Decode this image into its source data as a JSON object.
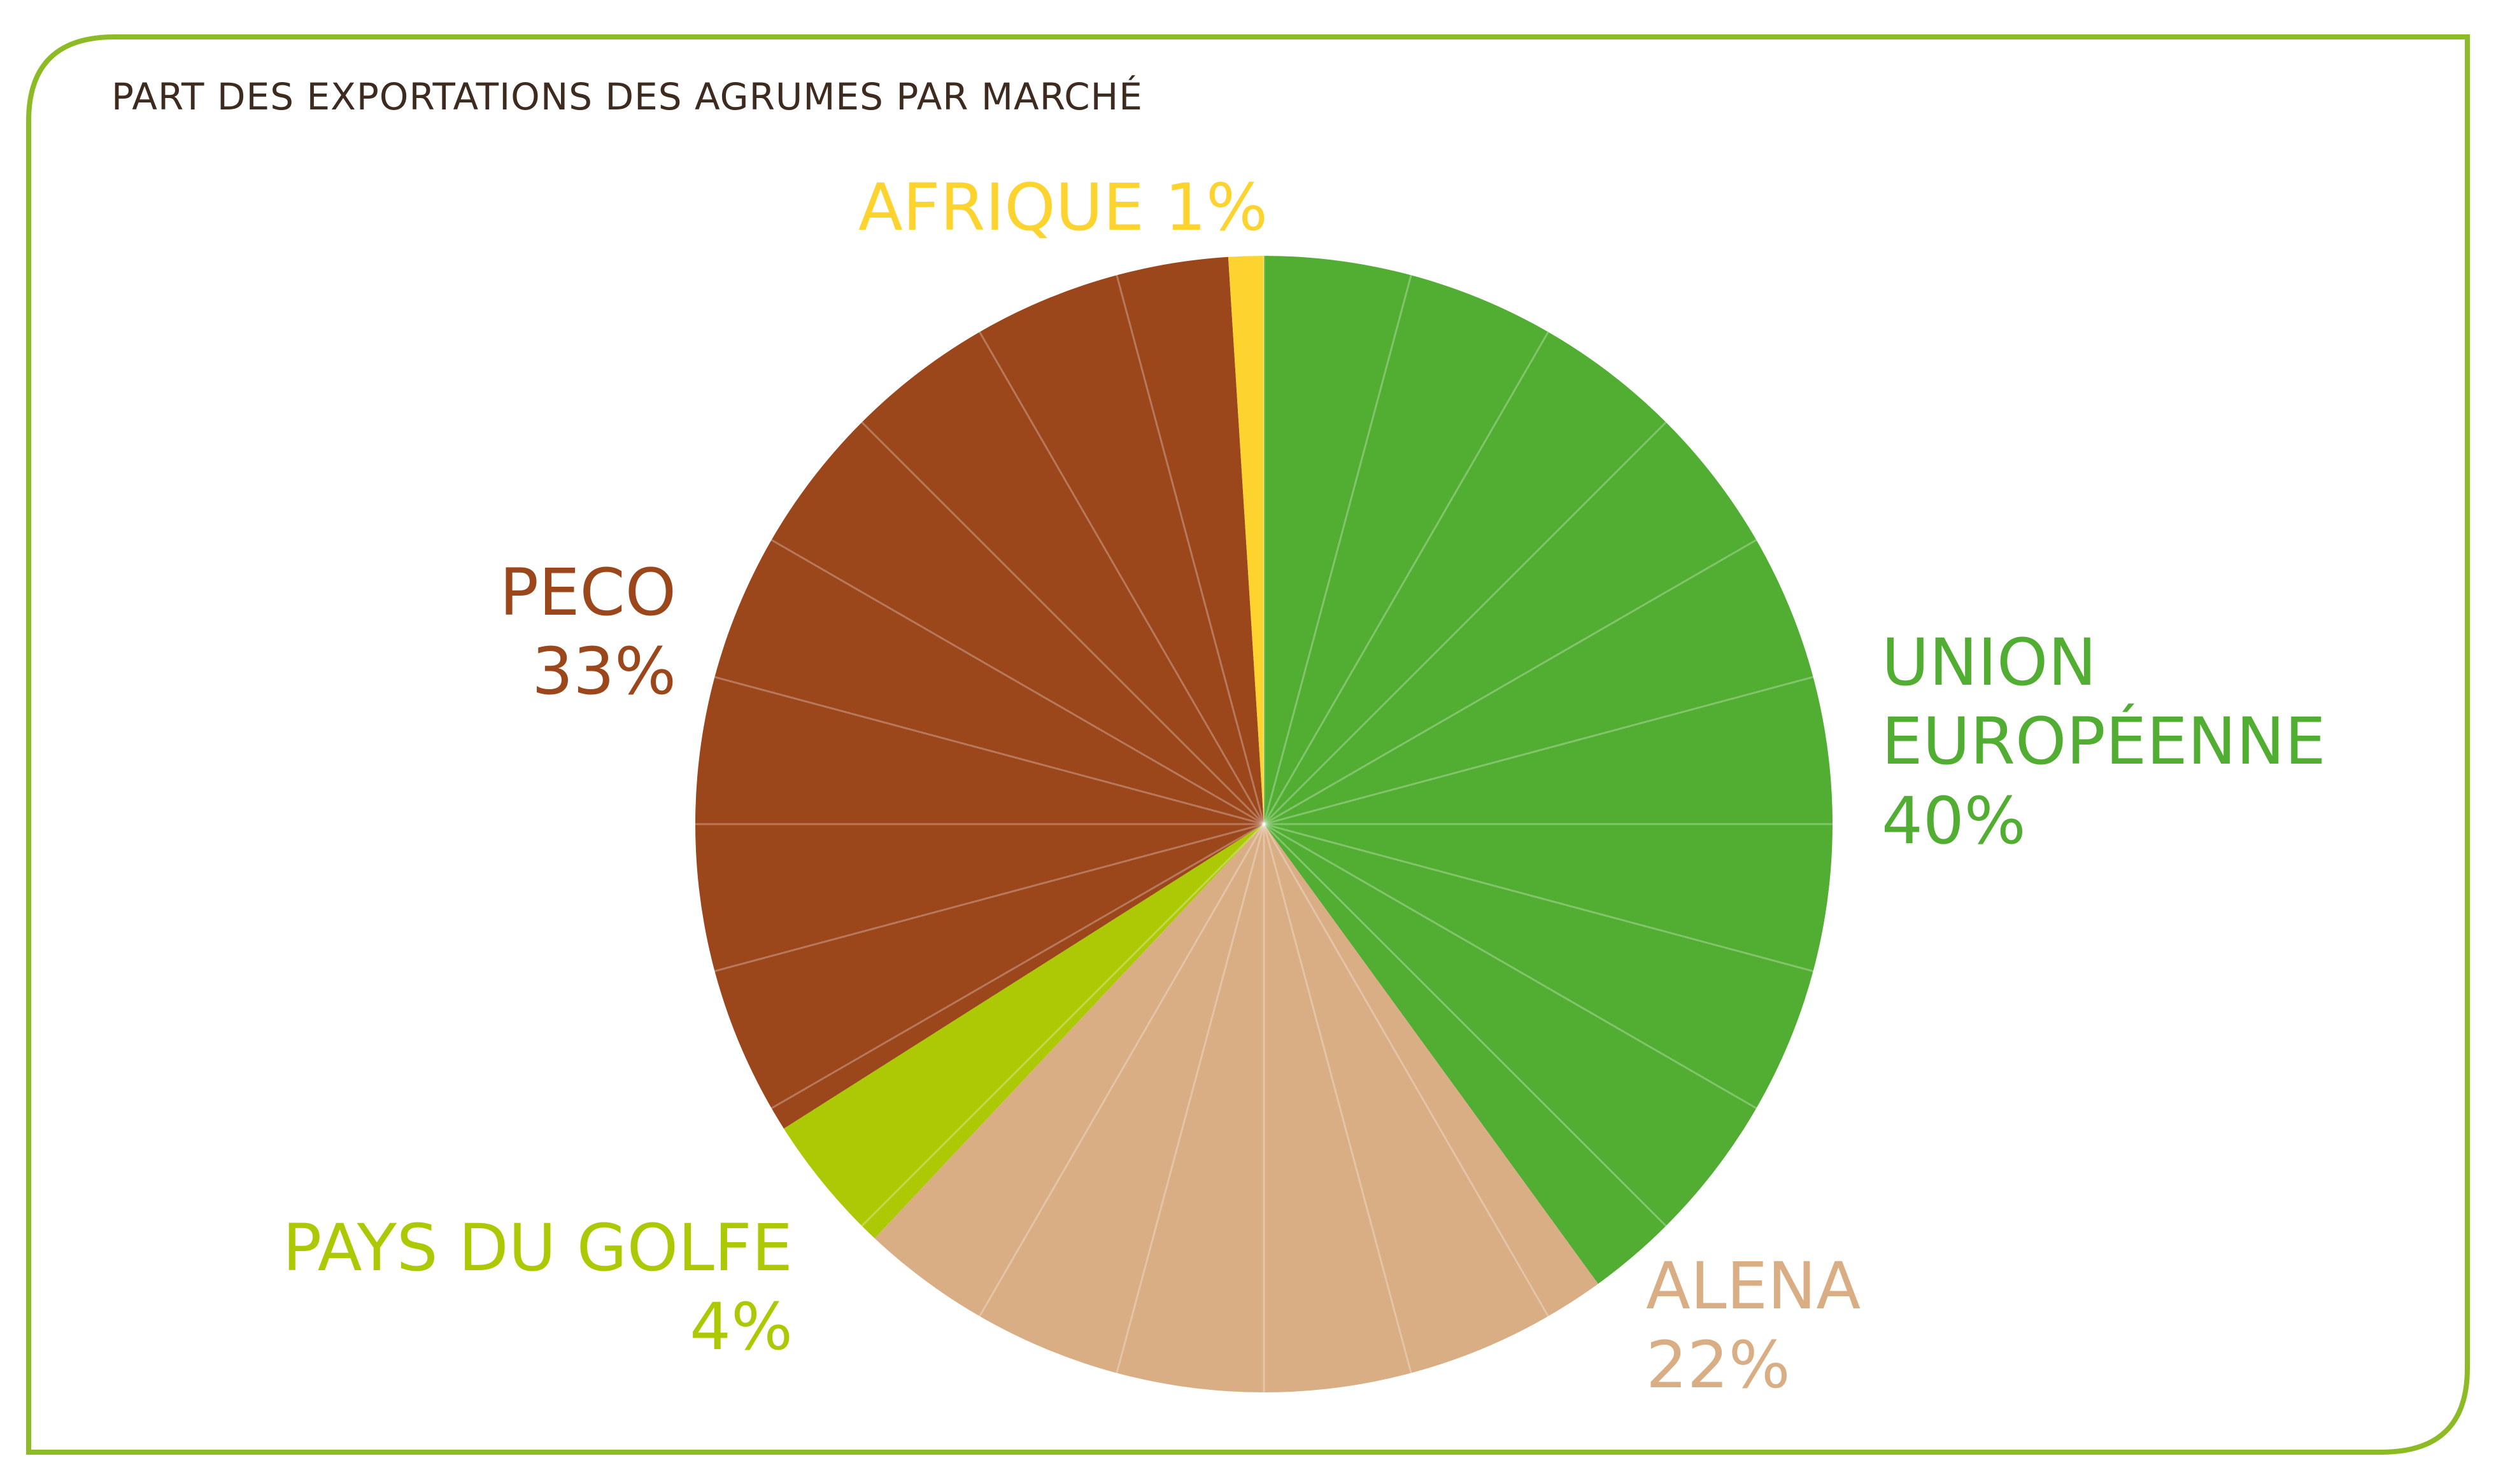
{
  "chart_data": {
    "type": "pie",
    "title": "PART DES EXPORTATIONS DES AGRUMES PAR MARCHÉ",
    "slices": [
      {
        "name": "UNION EUROPÉENNE",
        "value": 40,
        "value_label": "40%",
        "color": "#52ae32"
      },
      {
        "name": "ALENA",
        "value": 22,
        "value_label": "22%",
        "color": "#d9ae85"
      },
      {
        "name": "PAYS DU GOLFE",
        "value": 4,
        "value_label": "4%",
        "color": "#adc906"
      },
      {
        "name": "PECO",
        "value": 33,
        "value_label": "33%",
        "color": "#9c461c"
      },
      {
        "name": "AFRIQUE",
        "value": 1,
        "value_label": "1%",
        "color": "#fdd42f"
      }
    ],
    "start_angle": "12 o'clock",
    "direction": "clockwise",
    "segment_lines": true,
    "frame_color": "#8dbb25"
  }
}
